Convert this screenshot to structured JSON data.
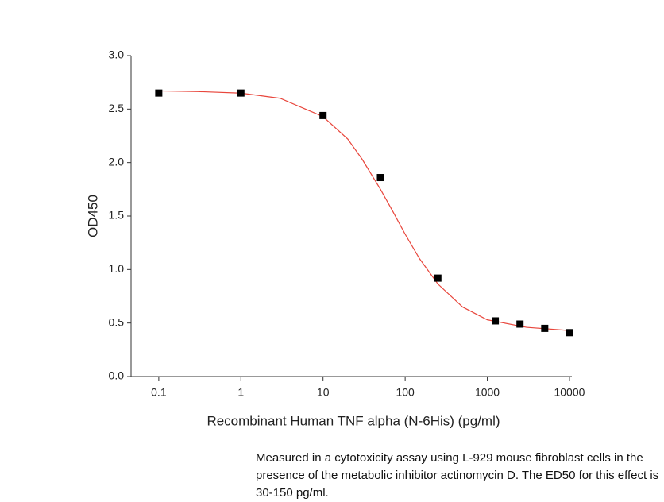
{
  "chart_data": {
    "type": "scatter",
    "xlabel": "Recombinant Human TNF alpha (N-6His) (pg/ml)",
    "ylabel": "OD450",
    "x": [
      0.1,
      1,
      10,
      50,
      250,
      1250,
      2500,
      5000,
      10000
    ],
    "values": [
      2.65,
      2.65,
      2.44,
      1.86,
      0.92,
      0.52,
      0.49,
      0.45,
      0.41
    ],
    "color": "#000000",
    "fit": {
      "color": "#e8463c",
      "x": [
        0.1,
        0.3,
        1,
        3,
        10,
        20,
        30,
        50,
        70,
        100,
        150,
        250,
        500,
        1000,
        3000,
        10000
      ],
      "values": [
        2.67,
        2.664,
        2.649,
        2.601,
        2.43,
        2.22,
        2.03,
        1.75,
        1.55,
        1.33,
        1.1,
        0.865,
        0.65,
        0.53,
        0.46,
        0.43
      ]
    },
    "xscale": "log",
    "xlim": [
      0.046,
      10700
    ],
    "xticks": [
      0.1,
      1,
      10,
      100,
      1000,
      10000
    ],
    "ylim": [
      0,
      3
    ],
    "yticks": [
      {
        "value": 0,
        "label": "0.0"
      },
      0.5,
      {
        "value": 1,
        "label": "1.0"
      },
      1.5,
      {
        "value": 2,
        "label": "2.0"
      },
      2.5,
      {
        "value": 3,
        "label": "3.0"
      }
    ],
    "grid": false
  },
  "caption": "Measured in a cytotoxicity assay using L-929 mouse fibroblast cells in the presence of the metabolic inhibitor actinomycin D. The ED50 for this effect is 30-150 pg/ml."
}
